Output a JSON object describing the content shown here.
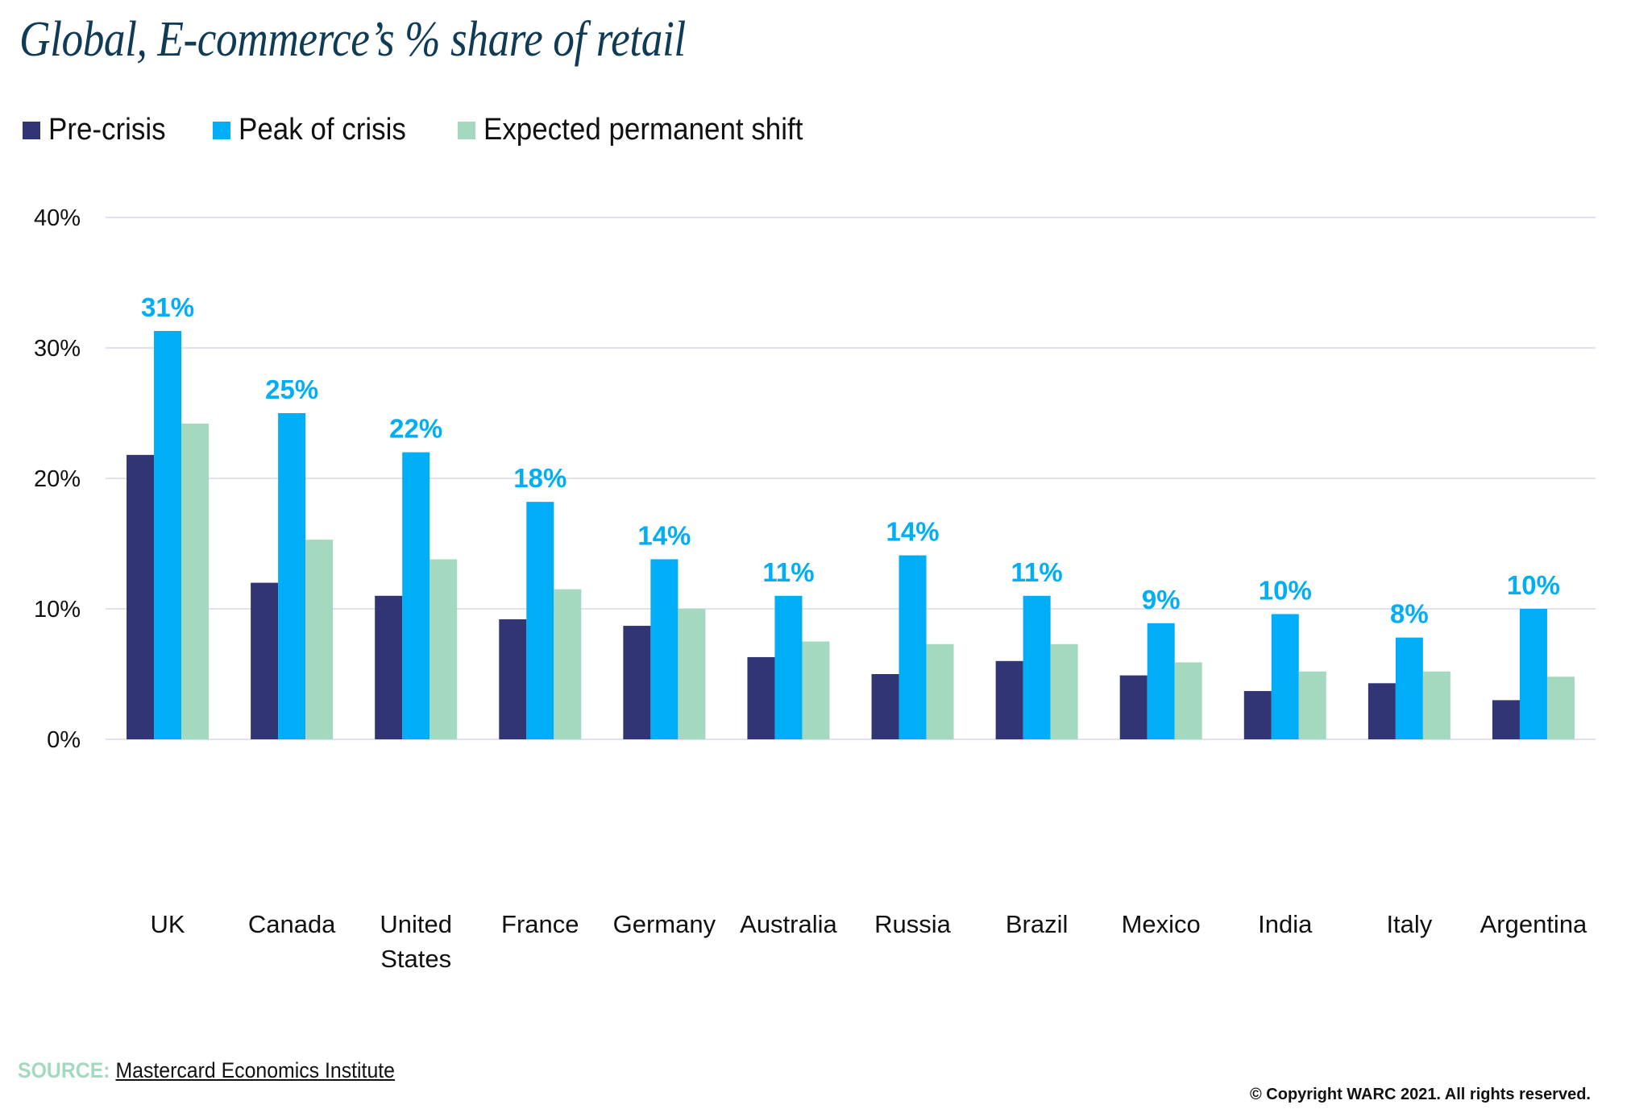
{
  "title": "Global, E-commerce’s % share of retail",
  "legend": [
    {
      "label": "Pre-crisis",
      "color": "#323574"
    },
    {
      "label": "Peak of crisis",
      "color": "#00aef8"
    },
    {
      "label": "Expected permanent shift",
      "color": "#a4d9c0"
    }
  ],
  "source": {
    "label": "SOURCE:",
    "text": "Mastercard Economics Institute"
  },
  "copyright": "© Copyright WARC 2021. All rights reserved.",
  "chart_data": {
    "type": "bar",
    "title": "Global, E-commerce’s % share of retail",
    "xlabel": "",
    "ylabel": "",
    "ylim": [
      0,
      40
    ],
    "yticks": [
      0,
      10,
      20,
      30,
      40
    ],
    "ytick_labels": [
      "0%",
      "10%",
      "20%",
      "30%",
      "40%"
    ],
    "grid": true,
    "legend_position": "top-left",
    "categories": [
      [
        "UK"
      ],
      [
        "Canada"
      ],
      [
        "United",
        "States"
      ],
      [
        "France"
      ],
      [
        "Germany"
      ],
      [
        "Australia"
      ],
      [
        "Russia"
      ],
      [
        "Brazil"
      ],
      [
        "Mexico"
      ],
      [
        "India"
      ],
      [
        "Italy"
      ],
      [
        "Argentina"
      ]
    ],
    "series": [
      {
        "name": "Pre-crisis",
        "color": "#323574",
        "values": [
          21.8,
          12.0,
          11.0,
          9.2,
          8.7,
          6.3,
          5.0,
          6.0,
          4.9,
          3.7,
          4.3,
          3.0
        ]
      },
      {
        "name": "Peak of crisis",
        "color": "#00aef8",
        "values": [
          31.3,
          25.0,
          22.0,
          18.2,
          13.8,
          11.0,
          14.1,
          11.0,
          8.9,
          9.6,
          7.8,
          10.0
        ]
      },
      {
        "name": "Expected permanent shift",
        "color": "#a4d9c0",
        "values": [
          24.2,
          15.3,
          13.8,
          11.5,
          10.0,
          7.5,
          7.3,
          7.3,
          5.9,
          5.2,
          5.2,
          4.8
        ]
      }
    ],
    "data_labels": {
      "series": "Peak of crisis",
      "color": "#00aef8",
      "labels": [
        "31%",
        "25%",
        "22%",
        "18%",
        "14%",
        "11%",
        "14%",
        "11%",
        "9%",
        "10%",
        "8%",
        "10%"
      ]
    }
  }
}
